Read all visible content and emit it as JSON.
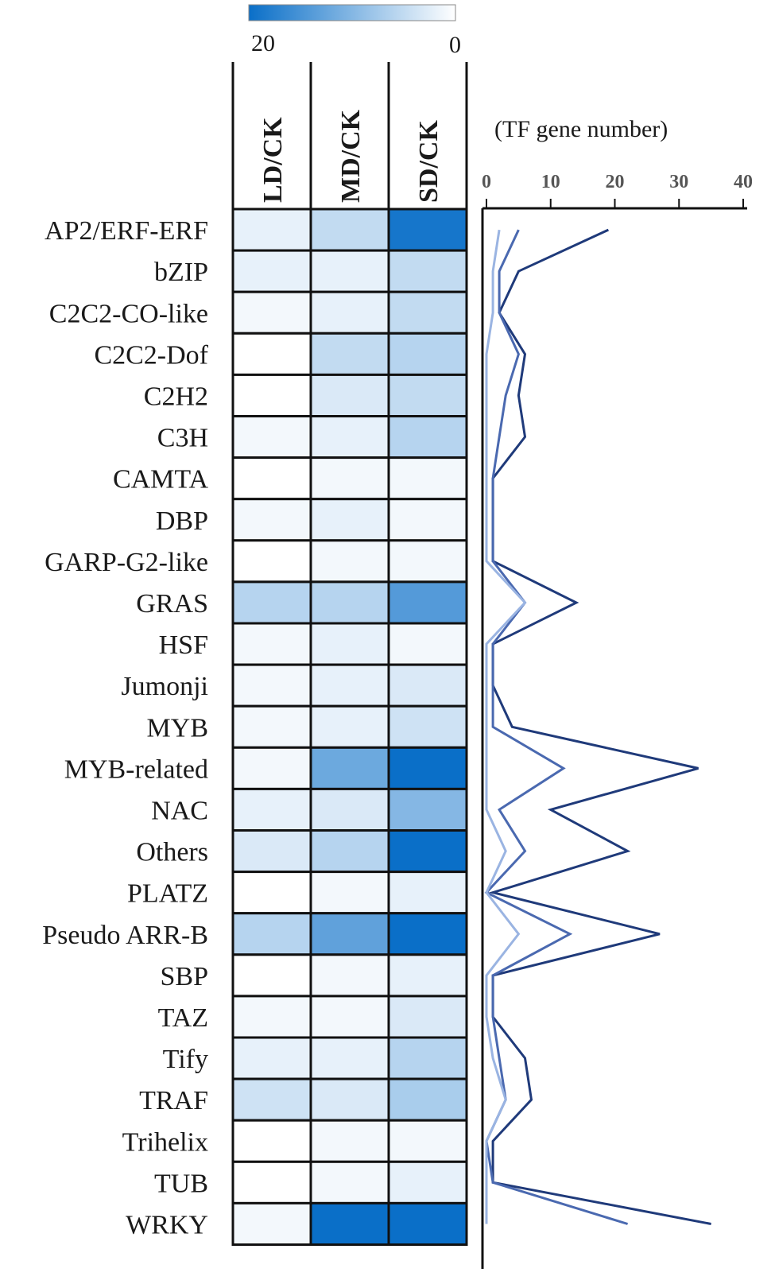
{
  "chart_data": [
    {
      "type": "heatmap",
      "columns": [
        "LD/CK",
        "MD/CK",
        "SD/CK"
      ],
      "rows": [
        "AP2/ERF-ERF",
        "bZIP",
        "C2C2-CO-like",
        "C2C2-Dof",
        "C2H2",
        "C3H",
        "CAMTA",
        "DBP",
        "GARP-G2-like",
        "GRAS",
        "HSF",
        "Jumonji",
        "MYB",
        "MYB-related",
        "NAC",
        "Others",
        "PLATZ",
        "Pseudo ARR-B",
        "SBP",
        "TAZ",
        "Tify",
        "TRAF",
        "Trihelix",
        "TUB",
        "WRKY"
      ],
      "values": [
        [
          2,
          5,
          19
        ],
        [
          2,
          2,
          5
        ],
        [
          1,
          2,
          5
        ],
        [
          0,
          5,
          6
        ],
        [
          0,
          3,
          5
        ],
        [
          1,
          2,
          6
        ],
        [
          0,
          1,
          1
        ],
        [
          1,
          2,
          1
        ],
        [
          0,
          1,
          1
        ],
        [
          6,
          6,
          14
        ],
        [
          1,
          2,
          1
        ],
        [
          1,
          2,
          3
        ],
        [
          1,
          2,
          4
        ],
        [
          1,
          12,
          33
        ],
        [
          2,
          3,
          10
        ],
        [
          3,
          6,
          22
        ],
        [
          0,
          1,
          2
        ],
        [
          6,
          13,
          27
        ],
        [
          0,
          1,
          2
        ],
        [
          1,
          1,
          3
        ],
        [
          2,
          2,
          6
        ],
        [
          4,
          3,
          7
        ],
        [
          0,
          1,
          1
        ],
        [
          0,
          1,
          2
        ],
        [
          1,
          22,
          35
        ]
      ],
      "color_scale": {
        "min": 0,
        "max": 20,
        "min_label": "0",
        "max_label": "20",
        "min_color": "#ffffff",
        "max_color": "#0a6fc8"
      }
    },
    {
      "type": "line",
      "title": "(TF gene number)",
      "x_ticks": [
        "0",
        "10",
        "20",
        "30",
        "40"
      ],
      "xlim": [
        0,
        40
      ],
      "orientation": "vertical",
      "series": [
        {
          "color": "#1f3a7a",
          "values": [
            19,
            5,
            2,
            6,
            5,
            6,
            1,
            1,
            1,
            14,
            1,
            1,
            4,
            33,
            10,
            22,
            1,
            27,
            1,
            1,
            6,
            7,
            1,
            1,
            35
          ]
        },
        {
          "color": "#4a69b0",
          "values": [
            5,
            2,
            2,
            5,
            3,
            2,
            1,
            1,
            1,
            6,
            1,
            1,
            1,
            12,
            2,
            6,
            0,
            13,
            1,
            1,
            2,
            3,
            0,
            1,
            22
          ]
        },
        {
          "color": "#9ab4e2",
          "values": [
            2,
            1,
            1,
            0,
            0,
            0,
            0,
            0,
            0,
            6,
            0,
            0,
            0,
            0,
            0,
            3,
            0,
            5,
            0,
            0,
            1,
            3,
            0,
            0,
            0
          ]
        }
      ]
    }
  ]
}
